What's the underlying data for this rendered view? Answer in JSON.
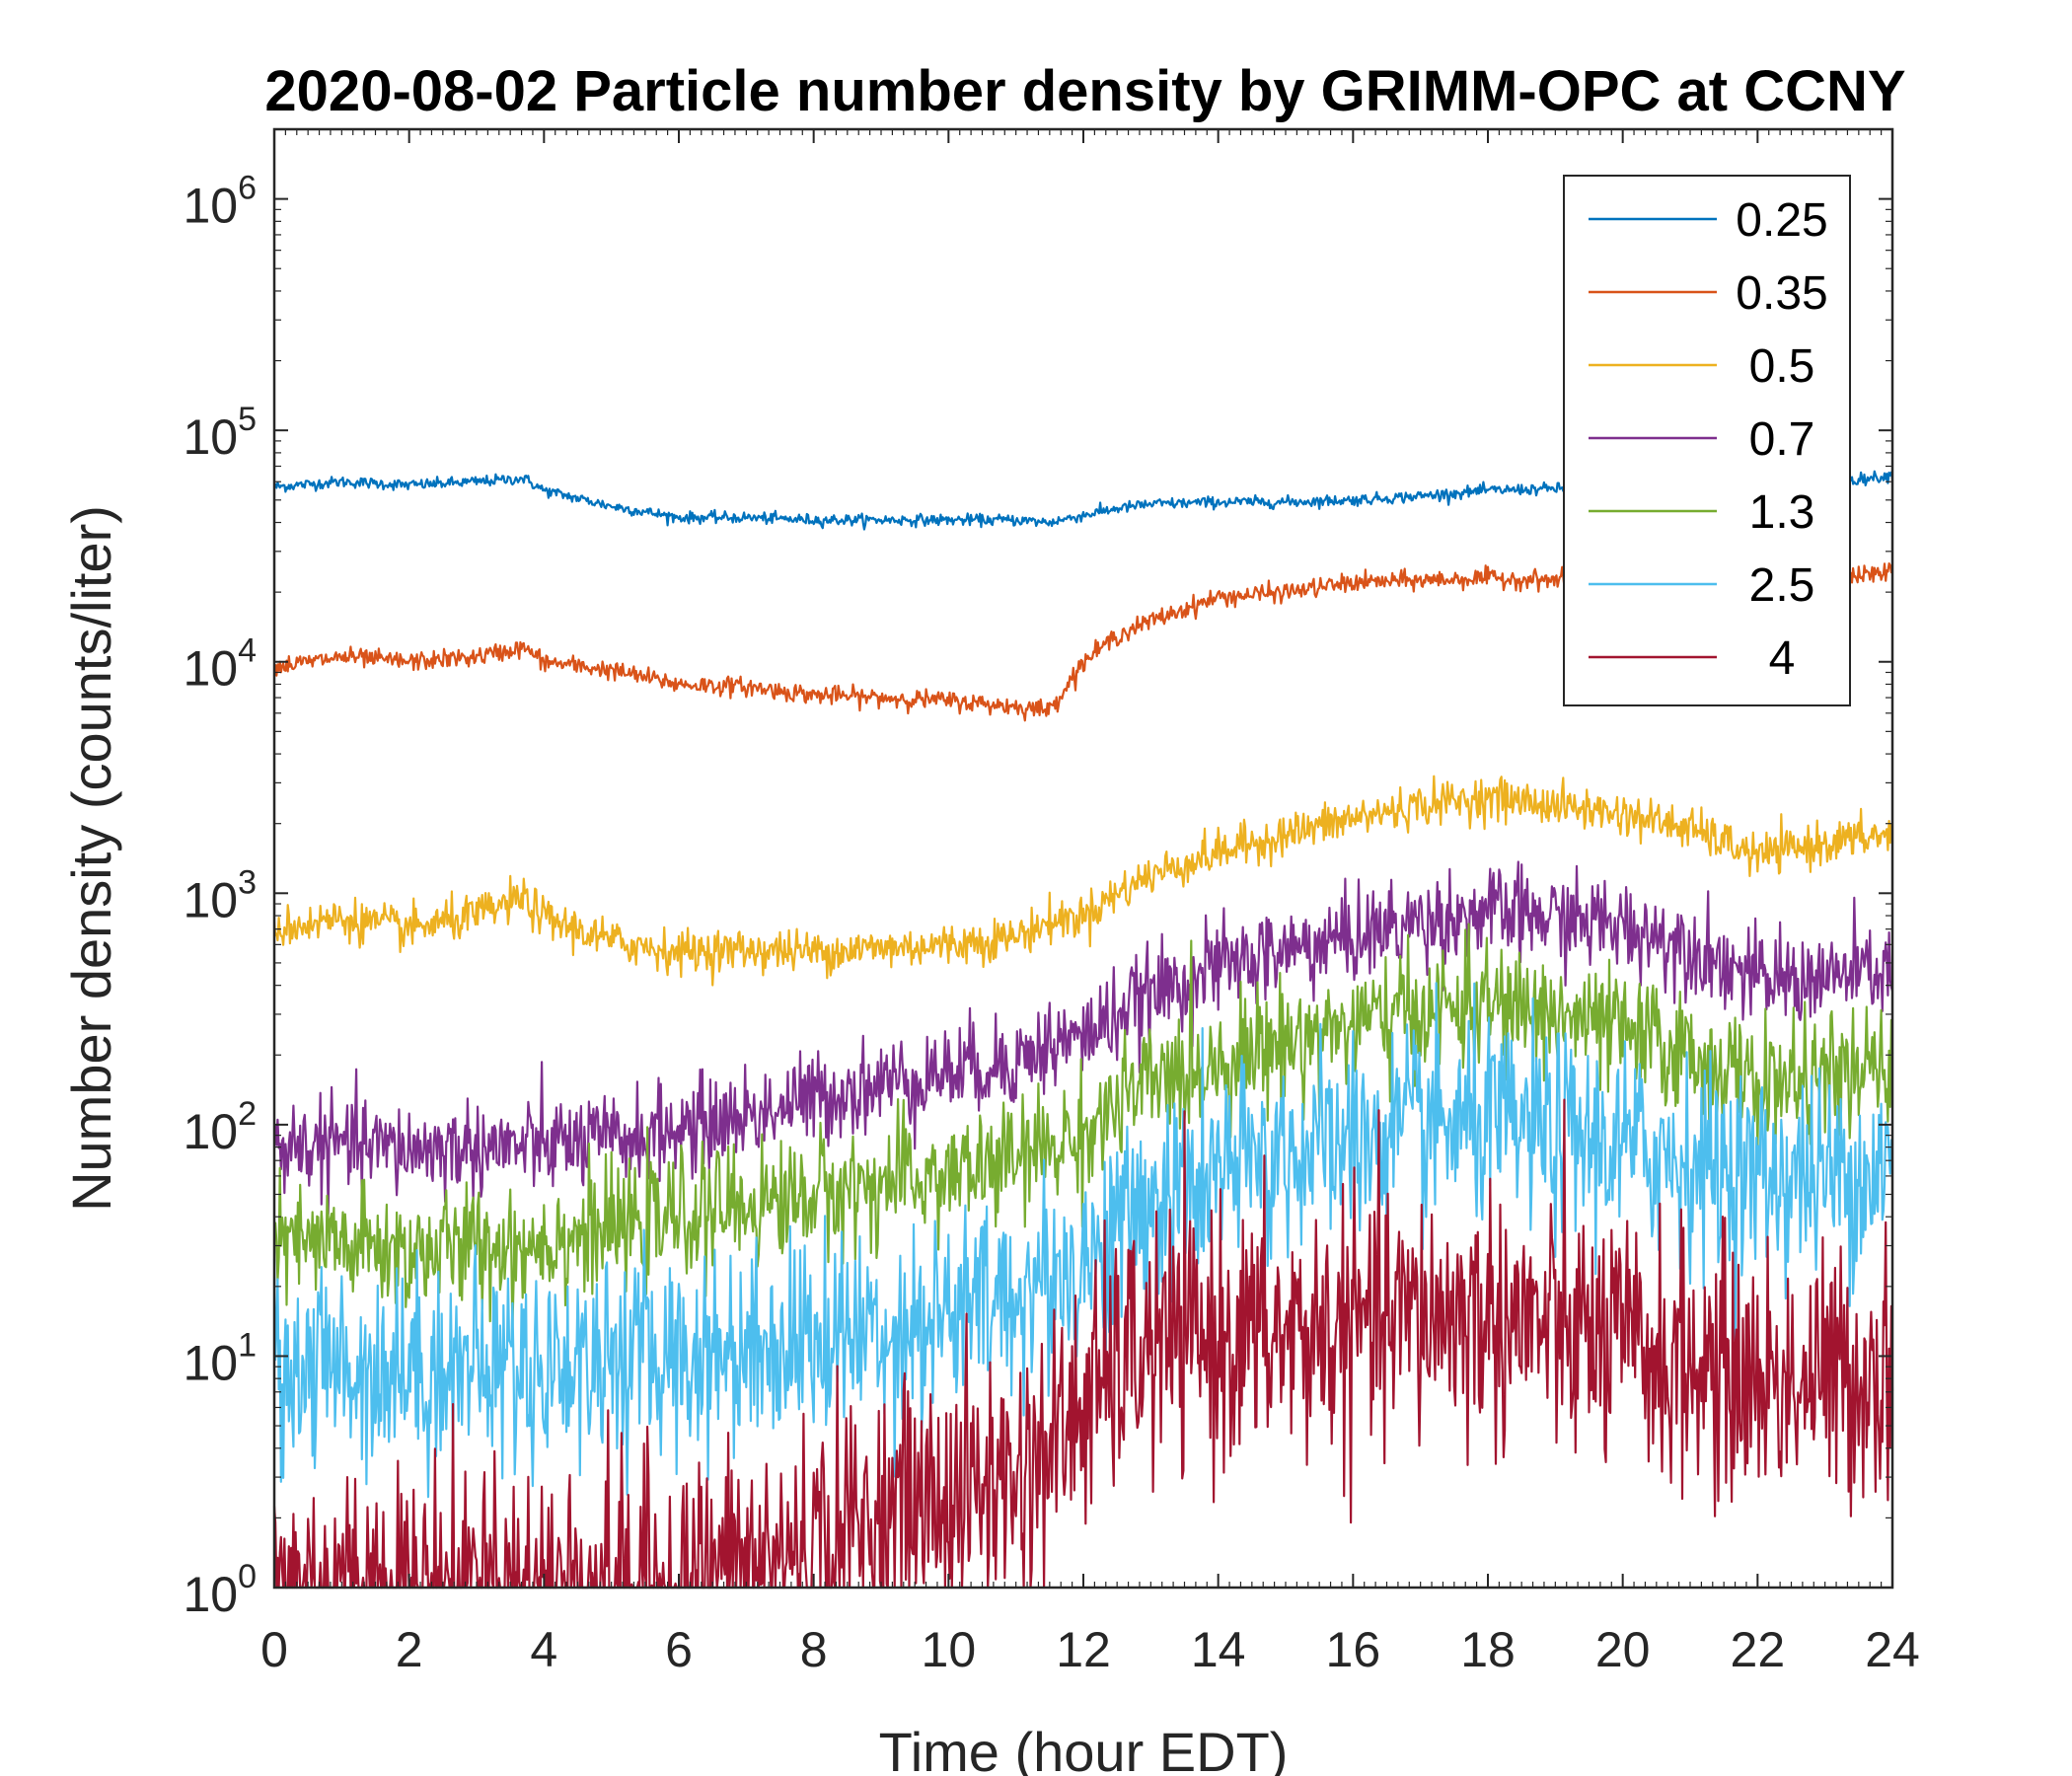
{
  "chart_data": {
    "type": "line",
    "title": "2020-08-02 Particle number density by GRIMM-OPC at CCNY",
    "xlabel": "Time (hour EDT)",
    "ylabel": "Number density (counts/liter)",
    "xlim": [
      0,
      24
    ],
    "ylim": [
      1,
      2000000
    ],
    "yscale": "log",
    "x_ticks": [
      "0",
      "2",
      "4",
      "6",
      "8",
      "10",
      "12",
      "14",
      "16",
      "18",
      "20",
      "22",
      "24"
    ],
    "y_ticks": [
      {
        "base": "10",
        "exp": "0",
        "value": 1
      },
      {
        "base": "10",
        "exp": "1",
        "value": 10
      },
      {
        "base": "10",
        "exp": "2",
        "value": 100
      },
      {
        "base": "10",
        "exp": "3",
        "value": 1000
      },
      {
        "base": "10",
        "exp": "4",
        "value": 10000
      },
      {
        "base": "10",
        "exp": "5",
        "value": 100000
      },
      {
        "base": "10",
        "exp": "6",
        "value": 1000000
      }
    ],
    "legend_position": "top-right",
    "x": [
      0,
      1,
      2,
      3,
      3.7,
      4,
      5,
      6,
      7,
      8,
      9,
      10,
      11,
      11.5,
      12,
      12.5,
      13,
      14,
      15,
      16,
      17,
      18,
      19,
      20,
      21,
      22,
      23,
      24
    ],
    "series": [
      {
        "name": "0.25",
        "color": "#0072BD",
        "noise": 0.012,
        "values": [
          57000,
          60000,
          58000,
          60000,
          62000,
          55000,
          47000,
          42000,
          42000,
          41000,
          41000,
          41000,
          41000,
          40000,
          43000,
          46000,
          48000,
          49000,
          49000,
          50000,
          52000,
          55000,
          56000,
          55000,
          53000,
          55000,
          59000,
          64000
        ]
      },
      {
        "name": "0.35",
        "color": "#D95319",
        "noise": 0.02,
        "values": [
          9500,
          10500,
          10000,
          10500,
          11500,
          10000,
          9200,
          8000,
          7800,
          7200,
          7000,
          6800,
          6400,
          6200,
          10000,
          13000,
          15000,
          19000,
          20000,
          22000,
          22500,
          23000,
          22500,
          22000,
          21500,
          21000,
          23000,
          24500
        ]
      },
      {
        "name": "0.5",
        "color": "#EDB120",
        "noise": 0.045,
        "values": [
          700,
          780,
          700,
          800,
          950,
          780,
          620,
          560,
          570,
          560,
          580,
          600,
          650,
          750,
          800,
          1000,
          1200,
          1500,
          1800,
          2100,
          2400,
          2600,
          2400,
          2200,
          1900,
          1450,
          1650,
          1800
        ]
      },
      {
        "name": "0.7",
        "color": "#7E2F8E",
        "noise": 0.1,
        "values": [
          80,
          82,
          78,
          80,
          80,
          82,
          85,
          95,
          110,
          130,
          150,
          170,
          190,
          220,
          240,
          300,
          360,
          480,
          560,
          650,
          760,
          820,
          780,
          720,
          600,
          420,
          430,
          470
        ]
      },
      {
        "name": "1.3",
        "color": "#77AC30",
        "noise": 0.13,
        "values": [
          30,
          30,
          28,
          30,
          30,
          32,
          35,
          40,
          45,
          50,
          55,
          60,
          70,
          80,
          90,
          120,
          150,
          190,
          230,
          270,
          310,
          330,
          300,
          250,
          200,
          150,
          160,
          170
        ]
      },
      {
        "name": "2.5",
        "color": "#4DBEEE",
        "noise": 0.22,
        "values": [
          9,
          9,
          9,
          9,
          9,
          9,
          10,
          10,
          11,
          12,
          13,
          15,
          18,
          22,
          25,
          35,
          45,
          60,
          75,
          85,
          95,
          100,
          90,
          80,
          70,
          60,
          60,
          65
        ]
      },
      {
        "name": "4",
        "color": "#A2142F",
        "noise": 0.28,
        "values": [
          1,
          1,
          1,
          1,
          1,
          1,
          1,
          1,
          1.2,
          1.5,
          2,
          2.5,
          3,
          4,
          6,
          9,
          11,
          12,
          12,
          13,
          15,
          15,
          13,
          11,
          9,
          8,
          8,
          9
        ]
      }
    ]
  }
}
